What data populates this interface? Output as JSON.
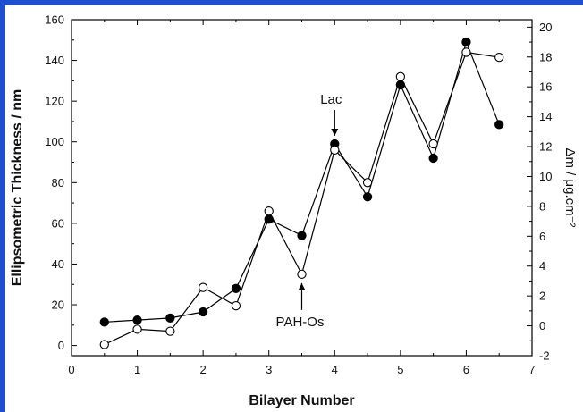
{
  "chart_data": {
    "type": "line",
    "title": "",
    "xlabel": "Bilayer Number",
    "ylabel": "Ellipsometric Thickness / nm",
    "y2label": "Δm / μg.cm⁻²",
    "xlim": [
      0,
      7
    ],
    "ylim": [
      -5,
      160
    ],
    "y2lim": [
      -2,
      20.5
    ],
    "xticks": [
      0,
      1,
      2,
      3,
      4,
      5,
      6,
      7
    ],
    "yticks": [
      0,
      20,
      40,
      60,
      80,
      100,
      120,
      140,
      160
    ],
    "y2ticks": [
      -2,
      0,
      2,
      4,
      6,
      8,
      10,
      12,
      14,
      16,
      18,
      20
    ],
    "grid": false,
    "series": [
      {
        "marker": "filled-circle",
        "axis": "left",
        "x": [
          0.5,
          1,
          1.5,
          2,
          2.5,
          3,
          3.5,
          4,
          4.5,
          5,
          5.5,
          6,
          6.5
        ],
        "y": [
          11.5,
          12.5,
          13.5,
          16.5,
          28,
          62,
          54,
          99,
          73,
          128,
          92,
          149,
          108.5
        ]
      },
      {
        "marker": "open-circle",
        "axis": "left",
        "x": [
          0.5,
          1,
          1.5,
          2,
          2.5,
          3,
          3.5,
          4,
          4.5,
          5,
          5.5,
          6,
          6.5
        ],
        "y": [
          0.5,
          8,
          7,
          28.5,
          19.5,
          66,
          35,
          96,
          80,
          132,
          99,
          144,
          141.5
        ]
      }
    ],
    "annotations": [
      {
        "text": "Lac",
        "x": 4,
        "y": 99,
        "position": "above"
      },
      {
        "text": "PAH-Os",
        "x": 3.5,
        "y": 35,
        "position": "below"
      }
    ],
    "colors": {
      "frame_blue": "#1f4fcf",
      "line": "#000000"
    }
  }
}
